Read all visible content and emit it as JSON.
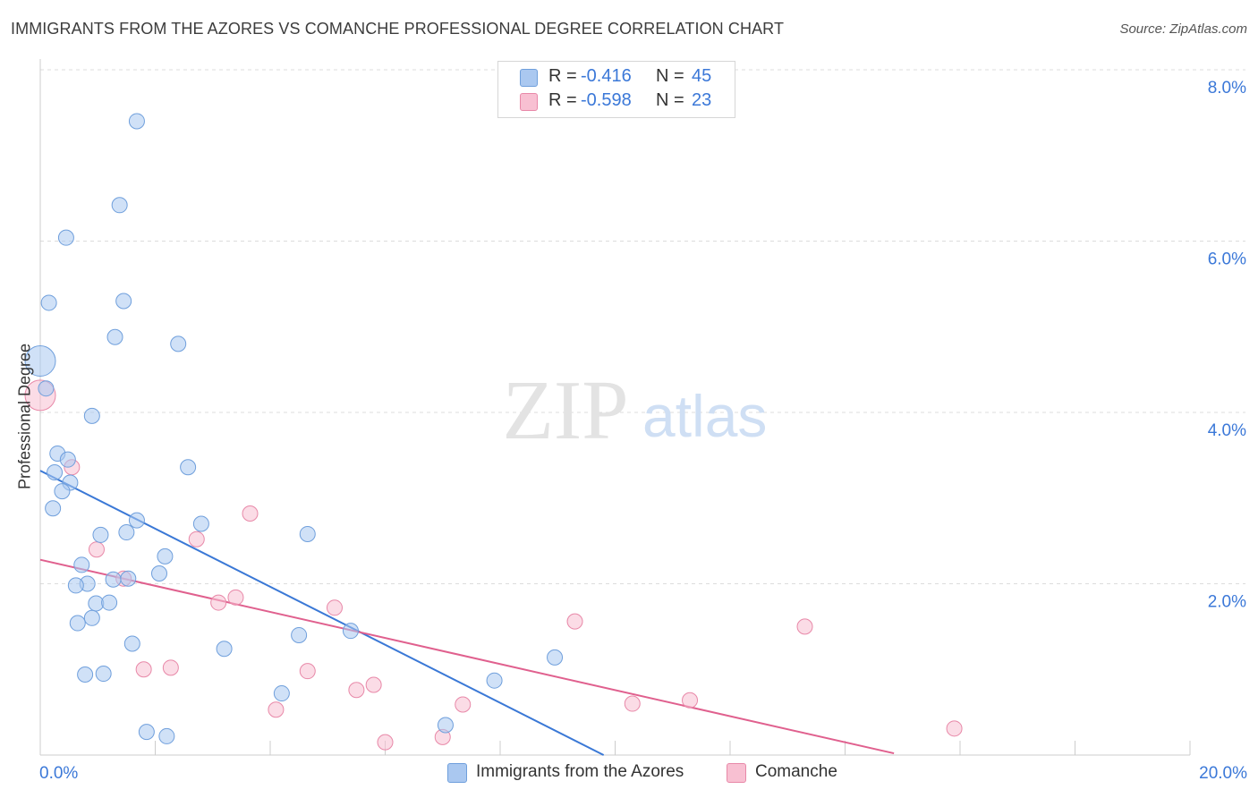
{
  "header": {
    "title": "IMMIGRANTS FROM THE AZORES VS COMANCHE PROFESSIONAL DEGREE CORRELATION CHART",
    "source": "Source: ZipAtlas.com"
  },
  "watermark": {
    "zip": "ZIP",
    "atlas": "atlas"
  },
  "legend": {
    "rows": [
      {
        "r_label": "R =",
        "r_value": "-0.416",
        "n_label": "N =",
        "n_value": "45",
        "color": "#aac8f0",
        "border": "#6f9fdc"
      },
      {
        "r_label": "R =",
        "r_value": "-0.598",
        "n_label": "N =",
        "n_value": "23",
        "color": "#f8c0d2",
        "border": "#e888a8"
      }
    ]
  },
  "bottom_legend": {
    "series1": "Immigrants from the Azores",
    "series2": "Comanche"
  },
  "colors": {
    "blue_fill": "#aac8f0",
    "blue_stroke": "#6f9fdc",
    "blue_line": "#3a78d6",
    "pink_fill": "#f8c0d2",
    "pink_stroke": "#e888a8",
    "pink_line": "#e0608e",
    "axis_text": "#3b78d8"
  },
  "chart_data": {
    "type": "scatter",
    "title": "IMMIGRANTS FROM THE AZORES VS COMANCHE PROFESSIONAL DEGREE CORRELATION CHART",
    "xlabel": "",
    "ylabel": "Professional Degree",
    "xlim": [
      0,
      20
    ],
    "ylim": [
      0,
      8
    ],
    "x_tick_labels": [
      {
        "value": 0,
        "label": "0.0%"
      },
      {
        "value": 20,
        "label": "20.0%"
      }
    ],
    "y_tick_labels": [
      {
        "value": 2,
        "label": "2.0%"
      },
      {
        "value": 4,
        "label": "4.0%"
      },
      {
        "value": 6,
        "label": "6.0%"
      },
      {
        "value": 8,
        "label": "8.0%"
      }
    ],
    "series": [
      {
        "name": "Immigrants from the Azores",
        "color": "#aac8f0",
        "trend": {
          "x0": 0,
          "y0": 3.32,
          "x1": 9.8,
          "y1": 0.0
        },
        "points": [
          {
            "x": 1.68,
            "y": 7.4
          },
          {
            "x": 1.38,
            "y": 6.42
          },
          {
            "x": 0.45,
            "y": 6.04
          },
          {
            "x": 0.15,
            "y": 5.28
          },
          {
            "x": 1.45,
            "y": 5.3
          },
          {
            "x": 1.3,
            "y": 4.88
          },
          {
            "x": 2.4,
            "y": 4.8
          },
          {
            "x": 0.0,
            "y": 4.6,
            "big": true
          },
          {
            "x": 0.1,
            "y": 4.28
          },
          {
            "x": 0.9,
            "y": 3.96
          },
          {
            "x": 0.3,
            "y": 3.52
          },
          {
            "x": 0.48,
            "y": 3.45
          },
          {
            "x": 0.25,
            "y": 3.3
          },
          {
            "x": 0.52,
            "y": 3.18
          },
          {
            "x": 0.38,
            "y": 3.08
          },
          {
            "x": 2.57,
            "y": 3.36
          },
          {
            "x": 0.22,
            "y": 2.88
          },
          {
            "x": 1.68,
            "y": 2.74
          },
          {
            "x": 2.8,
            "y": 2.7
          },
          {
            "x": 1.5,
            "y": 2.6
          },
          {
            "x": 1.05,
            "y": 2.57
          },
          {
            "x": 4.65,
            "y": 2.58
          },
          {
            "x": 2.17,
            "y": 2.32
          },
          {
            "x": 0.72,
            "y": 2.22
          },
          {
            "x": 2.07,
            "y": 2.12
          },
          {
            "x": 1.27,
            "y": 2.05
          },
          {
            "x": 1.53,
            "y": 2.06
          },
          {
            "x": 0.82,
            "y": 2.0
          },
          {
            "x": 0.62,
            "y": 1.98
          },
          {
            "x": 0.97,
            "y": 1.77
          },
          {
            "x": 1.2,
            "y": 1.78
          },
          {
            "x": 0.9,
            "y": 1.6
          },
          {
            "x": 0.65,
            "y": 1.54
          },
          {
            "x": 1.6,
            "y": 1.3
          },
          {
            "x": 4.5,
            "y": 1.4
          },
          {
            "x": 5.4,
            "y": 1.45
          },
          {
            "x": 3.2,
            "y": 1.24
          },
          {
            "x": 8.95,
            "y": 1.14
          },
          {
            "x": 0.78,
            "y": 0.94
          },
          {
            "x": 1.1,
            "y": 0.95
          },
          {
            "x": 7.9,
            "y": 0.87
          },
          {
            "x": 4.2,
            "y": 0.72
          },
          {
            "x": 7.05,
            "y": 0.35
          },
          {
            "x": 1.85,
            "y": 0.27
          },
          {
            "x": 2.2,
            "y": 0.22
          }
        ]
      },
      {
        "name": "Comanche",
        "color": "#f8c0d2",
        "trend": {
          "x0": 0,
          "y0": 2.28,
          "x1": 14.85,
          "y1": 0.02
        },
        "points": [
          {
            "x": 0.0,
            "y": 4.2,
            "big": true
          },
          {
            "x": 0.55,
            "y": 3.36
          },
          {
            "x": 3.65,
            "y": 2.82
          },
          {
            "x": 2.72,
            "y": 2.52
          },
          {
            "x": 0.98,
            "y": 2.4
          },
          {
            "x": 1.45,
            "y": 2.06
          },
          {
            "x": 3.4,
            "y": 1.84
          },
          {
            "x": 3.1,
            "y": 1.78
          },
          {
            "x": 5.12,
            "y": 1.72
          },
          {
            "x": 9.3,
            "y": 1.56
          },
          {
            "x": 13.3,
            "y": 1.5
          },
          {
            "x": 1.8,
            "y": 1.0
          },
          {
            "x": 2.27,
            "y": 1.02
          },
          {
            "x": 4.65,
            "y": 0.98
          },
          {
            "x": 5.8,
            "y": 0.82
          },
          {
            "x": 5.5,
            "y": 0.76
          },
          {
            "x": 11.3,
            "y": 0.64
          },
          {
            "x": 10.3,
            "y": 0.6
          },
          {
            "x": 7.35,
            "y": 0.59
          },
          {
            "x": 4.1,
            "y": 0.53
          },
          {
            "x": 15.9,
            "y": 0.31
          },
          {
            "x": 7.0,
            "y": 0.21
          },
          {
            "x": 6.0,
            "y": 0.15
          }
        ]
      }
    ]
  }
}
